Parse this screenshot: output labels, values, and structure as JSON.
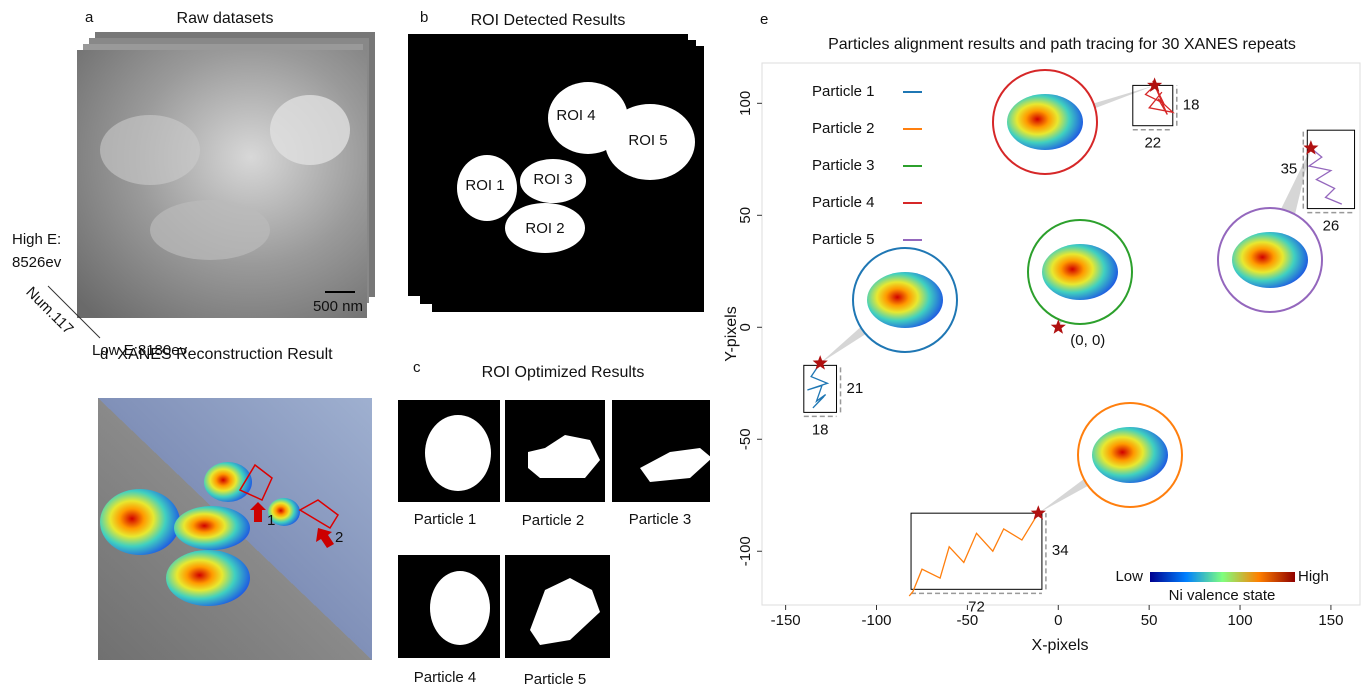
{
  "panel_a": {
    "label": "a",
    "title": "Raw datasets",
    "high_energy": "High E:",
    "high_energy_value": "8526ev",
    "count": "Num.117",
    "low_energy": "Low E:8180ev",
    "scale_bar": "500 nm"
  },
  "panel_b": {
    "label": "b",
    "title": "ROI Detected Results",
    "rois": [
      {
        "name": "ROI 1",
        "color": "#1f77b4"
      },
      {
        "name": "ROI 2",
        "color": "#ff7f0e"
      },
      {
        "name": "ROI 3",
        "color": "#2ca02c"
      },
      {
        "name": "ROI 4",
        "color": "#d62728"
      },
      {
        "name": "ROI 5",
        "color": "#9467bd"
      }
    ]
  },
  "panel_c": {
    "label": "c",
    "title": "ROI Optimized Results",
    "particles": [
      "Particle 1",
      "Particle 2",
      "Particle 3",
      "Particle 4",
      "Particle 5"
    ]
  },
  "panel_d": {
    "label": "d",
    "title": "XANES Reconstruction Result",
    "markers": [
      "1",
      "2"
    ]
  },
  "chart_data": {
    "panel_label": "e",
    "type": "line",
    "title": "Particles alignment results and path tracing for 30 XANES repeats",
    "x_label": "X-pixels",
    "y_label": "Y-pixels",
    "xlim": [
      -163,
      166
    ],
    "ylim": [
      -124,
      118
    ],
    "xticks": [
      -150,
      -100,
      -50,
      0,
      50,
      100,
      150
    ],
    "yticks": [
      -100,
      -50,
      0,
      50,
      100
    ],
    "series": [
      {
        "name": "Particle 1",
        "color": "#1f77b4",
        "x": [
          -131,
          -136,
          -127,
          -138,
          -130,
          -133,
          -128,
          -135,
          -129
        ],
        "y": [
          -16,
          -22,
          -25,
          -28,
          -26,
          -33,
          -30,
          -36,
          -31
        ],
        "box": {
          "x": -140,
          "y": -38,
          "width": 18,
          "height": 21
        }
      },
      {
        "name": "Particle 2",
        "color": "#ff7f0e",
        "x": [
          -11,
          -20,
          -30,
          -36,
          -45,
          -52,
          -60,
          -65,
          -75,
          -80,
          -82
        ],
        "y": [
          -83,
          -95,
          -90,
          -100,
          -92,
          -105,
          -98,
          -112,
          -108,
          -118,
          -120
        ],
        "box": {
          "x": -81,
          "y": -117,
          "width": 72,
          "height": 34
        }
      },
      {
        "name": "Particle 3",
        "color": "#2ca02c",
        "x": [
          0
        ],
        "y": [
          0
        ]
      },
      {
        "name": "Particle 4",
        "color": "#d62728",
        "x": [
          53,
          48,
          58,
          52,
          60,
          55,
          63,
          50,
          57
        ],
        "y": [
          108,
          104,
          100,
          110,
          95,
          102,
          96,
          98,
          105
        ],
        "box": {
          "x": 41,
          "y": 90,
          "width": 22,
          "height": 18
        }
      },
      {
        "name": "Particle 5",
        "color": "#9467bd",
        "x": [
          139,
          145,
          138,
          150,
          142,
          152,
          147,
          156
        ],
        "y": [
          80,
          76,
          72,
          70,
          66,
          62,
          58,
          55
        ],
        "box": {
          "x": 137,
          "y": 53,
          "width": 26,
          "height": 35
        }
      }
    ],
    "origin_label": "(0, 0)",
    "colorbar": {
      "low": "Low",
      "high": "High",
      "label": "Ni valence state"
    }
  }
}
